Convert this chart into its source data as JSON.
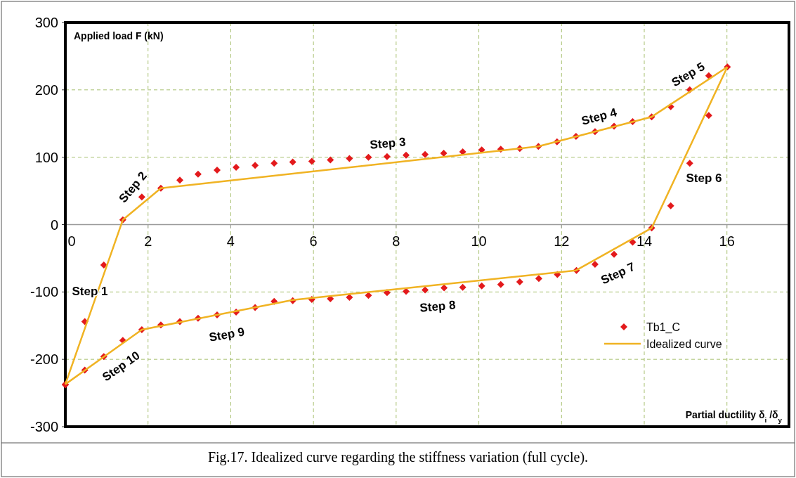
{
  "chart_data": {
    "type": "scatter",
    "xlabel": "Partial ductility δ$_{i}$ /δ$_{y}$",
    "ylabel": "Applied load F (kN)",
    "xlim": [
      0,
      17.5
    ],
    "xticks": [
      0,
      2,
      4,
      6,
      8,
      10,
      12,
      14,
      16
    ],
    "ylim": [
      -300,
      300
    ],
    "yticks": [
      -300,
      -200,
      -100,
      0,
      100,
      200,
      300
    ],
    "grid": true,
    "legend": "bottom right",
    "series": [
      {
        "name": "Tb1_C",
        "color": "#e31a1c",
        "marker": "diamond",
        "x": [
          0,
          0.47,
          0.93,
          1.39,
          1.85,
          2.31,
          2.77,
          3.21,
          3.67,
          4.13,
          4.59,
          5.05,
          5.5,
          5.96,
          6.41,
          6.87,
          7.33,
          7.78,
          8.24,
          8.7,
          9.15,
          9.61,
          10.07,
          10.53,
          10.99,
          11.44,
          11.89,
          12.35,
          12.81,
          13.27,
          13.72,
          14.18,
          14.64,
          15.1,
          15.56,
          16.01,
          15.56,
          15.1,
          14.64,
          14.18,
          13.72,
          13.27,
          12.81,
          12.36,
          11.9,
          11.45,
          10.99,
          10.53,
          10.07,
          9.61,
          9.16,
          8.7,
          8.24,
          7.78,
          7.33,
          6.87,
          6.41,
          5.96,
          5.5,
          5.05,
          4.59,
          4.13,
          3.67,
          3.21,
          2.77,
          2.31,
          1.85,
          1.39,
          0.93,
          0.47,
          0
        ],
        "values": [
          -237,
          -144,
          -60,
          7,
          41,
          54,
          66,
          75,
          81,
          85,
          88,
          91,
          93,
          94,
          96,
          98,
          100,
          101,
          103,
          104,
          106,
          108,
          111,
          112,
          113,
          116,
          123,
          131,
          138,
          146,
          153,
          160,
          175,
          200,
          221,
          234,
          162,
          91,
          28,
          -5,
          -26,
          -44,
          -59,
          -68,
          -74,
          -80,
          -85,
          -89,
          -91,
          -93,
          -94,
          -97,
          -99,
          -101,
          -105,
          -108,
          -110,
          -111,
          -113,
          -114,
          -123,
          -130,
          -134,
          -139,
          -144,
          -149,
          -156,
          -172,
          -196,
          -216,
          -238
        ]
      },
      {
        "name": "Idealized curve",
        "type": "line",
        "color": "#f0b323",
        "line_style": "solid",
        "x": [
          0,
          1.39,
          2.31,
          11.44,
          14.18,
          16.01
        ],
        "values": [
          -237,
          7,
          54,
          116,
          160,
          234
        ]
      },
      {
        "type": "line",
        "color": "#f0b323",
        "line_style": "solid",
        "x": [
          0,
          1.85,
          5.5,
          12.35,
          14.18,
          16.01
        ],
        "values": [
          -237,
          -156,
          -112,
          -68,
          -5,
          234
        ]
      }
    ],
    "annotations": [
      "Step 1",
      "Step 2",
      "Step 3",
      "Step 4",
      "Step 5",
      "Step 6",
      "Step 7",
      "Step 8",
      "Step 9",
      "Step 10",
      "Fig.17. Idealized curve regarding the stiffness variation (full cycle)."
    ]
  }
}
